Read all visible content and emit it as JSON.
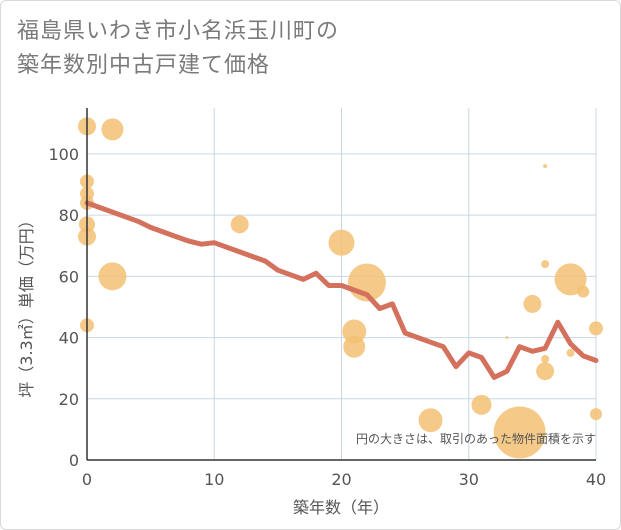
{
  "title_lines": [
    "福島県いわき市小名浜玉川町の",
    "築年数別中古戸建て価格"
  ],
  "note": "円の大きさは、取引のあった物件面積を示す",
  "colors": {
    "bubble": "#f3c173",
    "line": "#d4715d",
    "grid": "#c9d7e3",
    "axis": "#333333"
  },
  "chart_data": {
    "type": "scatter",
    "xlabel": "築年数（年）",
    "ylabel": "坪（3.3㎡）単価（万円）",
    "xlim": [
      0,
      40
    ],
    "ylim": [
      0,
      115
    ],
    "x_ticks": [
      0,
      10,
      20,
      30,
      40
    ],
    "y_ticks": [
      0,
      20,
      40,
      60,
      80,
      100
    ],
    "grid": true,
    "bubbles": [
      {
        "x": 0,
        "y": 109,
        "size": 9
      },
      {
        "x": 2,
        "y": 108,
        "size": 11
      },
      {
        "x": 0,
        "y": 91,
        "size": 7
      },
      {
        "x": 0,
        "y": 87,
        "size": 7
      },
      {
        "x": 0,
        "y": 84,
        "size": 7
      },
      {
        "x": 0,
        "y": 77,
        "size": 8
      },
      {
        "x": 0,
        "y": 73,
        "size": 9
      },
      {
        "x": 0,
        "y": 44,
        "size": 7
      },
      {
        "x": 2,
        "y": 60,
        "size": 14
      },
      {
        "x": 12,
        "y": 77,
        "size": 9
      },
      {
        "x": 20,
        "y": 71,
        "size": 13
      },
      {
        "x": 22,
        "y": 58,
        "size": 19
      },
      {
        "x": 21,
        "y": 42,
        "size": 12
      },
      {
        "x": 21,
        "y": 37,
        "size": 11
      },
      {
        "x": 27,
        "y": 13,
        "size": 12
      },
      {
        "x": 31,
        "y": 18,
        "size": 10
      },
      {
        "x": 33,
        "y": 40,
        "size": 1.5
      },
      {
        "x": 34,
        "y": 9,
        "size": 26
      },
      {
        "x": 35,
        "y": 51,
        "size": 9
      },
      {
        "x": 36,
        "y": 96,
        "size": 2
      },
      {
        "x": 36,
        "y": 64,
        "size": 4
      },
      {
        "x": 36,
        "y": 33,
        "size": 4
      },
      {
        "x": 36,
        "y": 29,
        "size": 9
      },
      {
        "x": 38,
        "y": 59,
        "size": 16
      },
      {
        "x": 38,
        "y": 35,
        "size": 4
      },
      {
        "x": 39,
        "y": 55,
        "size": 6
      },
      {
        "x": 40,
        "y": 43,
        "size": 7
      },
      {
        "x": 40,
        "y": 15,
        "size": 6
      }
    ],
    "trend": {
      "x": [
        0,
        1,
        2,
        3,
        4,
        5,
        6,
        7,
        8,
        9,
        10,
        11,
        12,
        13,
        14,
        15,
        16,
        17,
        18,
        19,
        20,
        21,
        22,
        23,
        24,
        25,
        26,
        27,
        28,
        29,
        30,
        31,
        32,
        33,
        34,
        35,
        36,
        37,
        38,
        39,
        40
      ],
      "y": [
        84,
        82.5,
        81,
        79.5,
        78,
        76,
        74.5,
        73,
        71.5,
        70.5,
        71,
        69.5,
        68,
        66.5,
        65,
        62,
        60.5,
        59,
        61,
        57,
        57,
        55.5,
        54,
        49.5,
        51,
        41.5,
        40,
        38.5,
        37,
        30.5,
        35,
        33.5,
        27,
        29,
        37,
        35.5,
        36.5,
        45,
        38,
        34,
        32.5
      ]
    }
  }
}
